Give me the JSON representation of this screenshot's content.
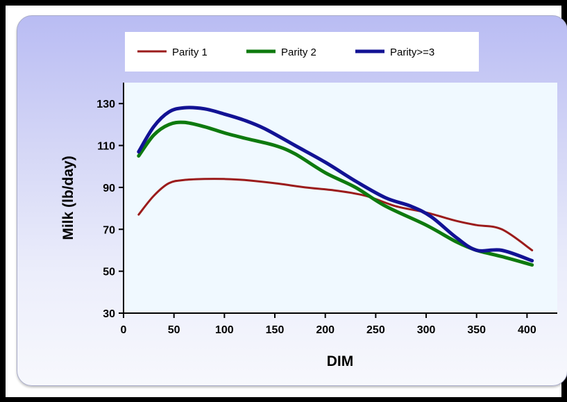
{
  "chart_data": {
    "type": "line",
    "xlabel": "DIM",
    "ylabel": "Milk (lb/day)",
    "xlim": [
      0,
      430
    ],
    "ylim": [
      30,
      140
    ],
    "xticks": [
      0,
      50,
      100,
      150,
      200,
      250,
      300,
      350,
      400
    ],
    "yticks": [
      30,
      50,
      70,
      90,
      110,
      130
    ],
    "grid": false,
    "legend_position": "top",
    "series": [
      {
        "name": "Parity 1",
        "color": "#9b1b1b",
        "x": [
          15,
          30,
          45,
          60,
          80,
          100,
          120,
          150,
          180,
          210,
          240,
          270,
          300,
          330,
          350,
          375,
          405
        ],
        "y": [
          77,
          86,
          92,
          93.5,
          94,
          94,
          93.5,
          92,
          90,
          88.5,
          86,
          81,
          78,
          74,
          72,
          70,
          60
        ]
      },
      {
        "name": "Parity 2",
        "color": "#0e7a0e",
        "x": [
          15,
          30,
          45,
          60,
          80,
          100,
          120,
          150,
          170,
          200,
          230,
          260,
          300,
          330,
          350,
          375,
          405
        ],
        "y": [
          105,
          115,
          120,
          121,
          119,
          116,
          113.5,
          110,
          106,
          97,
          90,
          81,
          72,
          64,
          60,
          57,
          53
        ]
      },
      {
        "name": "Parity>=3",
        "color": "#121294",
        "x": [
          15,
          30,
          45,
          60,
          80,
          100,
          120,
          140,
          170,
          200,
          230,
          260,
          285,
          305,
          330,
          350,
          375,
          405
        ],
        "y": [
          107,
          119,
          126,
          128,
          127.5,
          125,
          122,
          118,
          110,
          102,
          93,
          85,
          81,
          76,
          66,
          60,
          60,
          55
        ]
      }
    ]
  }
}
